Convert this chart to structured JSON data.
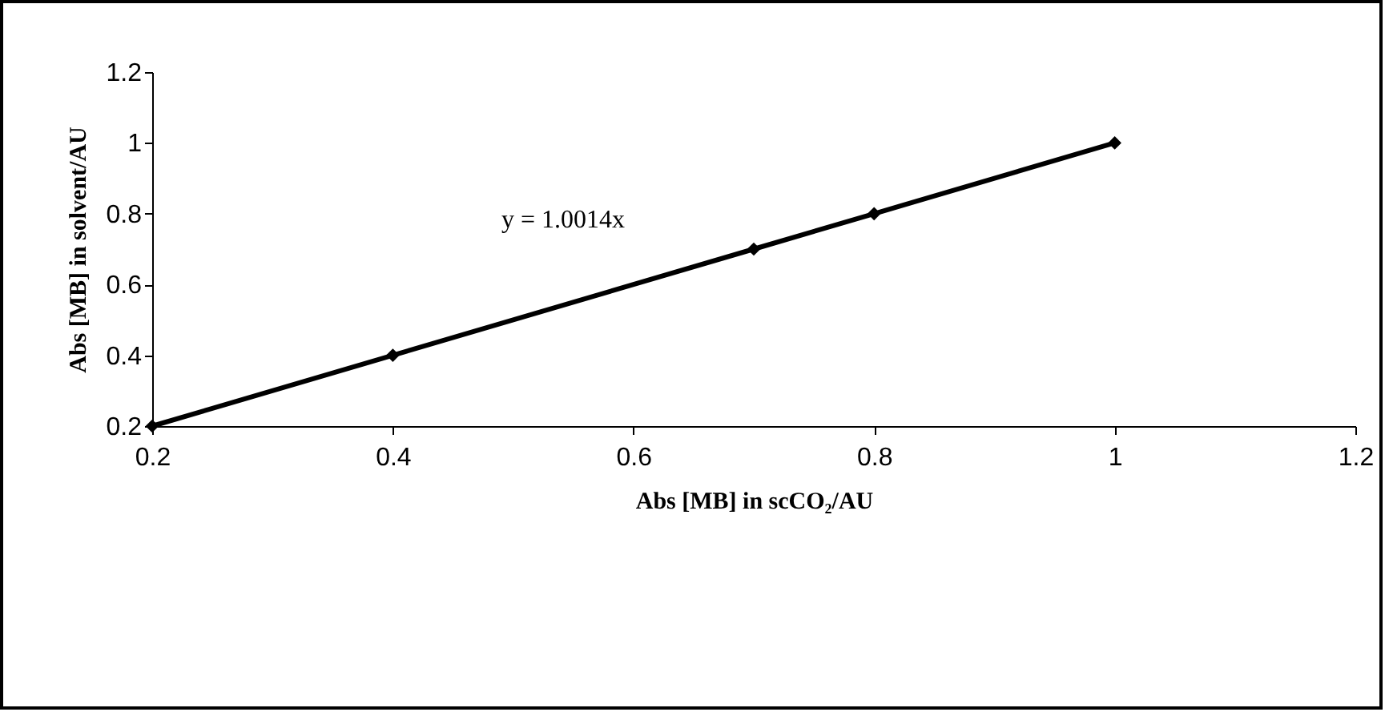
{
  "chart_data": {
    "type": "line",
    "xlabel": "Abs [MB] in scCO₂/AU",
    "ylabel": "Abs [MB] in solvent/AU",
    "x": [
      0.2,
      0.4,
      0.7,
      0.8,
      1
    ],
    "series": [
      {
        "color": "#000000",
        "values": [
          0.2,
          0.4,
          0.7,
          0.8,
          1
        ]
      }
    ],
    "xlim": [
      0.2,
      1.2
    ],
    "ylim": [
      0.2,
      1.2
    ],
    "xticks": [
      0.2,
      0.4,
      0.6,
      0.8,
      1,
      1.2
    ],
    "yticks": [
      0.2,
      0.4,
      0.6,
      0.8,
      1,
      1.2
    ],
    "marker": "diamond",
    "line_style": "solid",
    "annotations": [
      "y = 1.0014x"
    ]
  }
}
